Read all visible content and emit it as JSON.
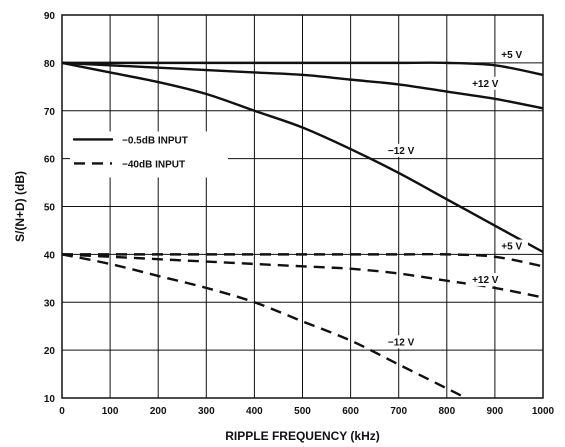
{
  "chart_data": {
    "type": "line",
    "title": "",
    "xlabel": "RIPPLE FREQUENCY (kHz)",
    "ylabel": "S/(N+D) (dB)",
    "xlim": [
      0,
      1000
    ],
    "ylim": [
      10,
      90
    ],
    "x_ticks": [
      "0",
      "100",
      "200",
      "300",
      "400",
      "500",
      "600",
      "700",
      "800",
      "900",
      "1000"
    ],
    "y_ticks": [
      "10",
      "20",
      "30",
      "40",
      "50",
      "60",
      "70",
      "80",
      "90"
    ],
    "grid": true,
    "legend": {
      "position": "left",
      "entries": [
        {
          "label": "−0.5dB INPUT",
          "style": "solid"
        },
        {
          "label": "−40dB INPUT",
          "style": "dashed"
        }
      ]
    },
    "series": [
      {
        "label": "+5 V",
        "style": "solid",
        "x": [
          0,
          100,
          200,
          300,
          400,
          500,
          600,
          700,
          800,
          900,
          1000
        ],
        "y": [
          80,
          80,
          80,
          80,
          80,
          80,
          80,
          80,
          80,
          79.5,
          77.5
        ]
      },
      {
        "label": "+12 V",
        "style": "solid",
        "x": [
          0,
          100,
          200,
          300,
          400,
          500,
          600,
          700,
          800,
          900,
          1000
        ],
        "y": [
          80,
          79.5,
          79,
          78.5,
          78,
          77.5,
          76.5,
          75.5,
          74,
          72.5,
          70.5
        ]
      },
      {
        "label": "−12 V",
        "style": "solid",
        "x": [
          0,
          100,
          200,
          300,
          400,
          500,
          600,
          700,
          800,
          900,
          1000
        ],
        "y": [
          80,
          78,
          76,
          73.5,
          70,
          66.5,
          62,
          57,
          51.5,
          46,
          40.5
        ]
      },
      {
        "label": "+5 V",
        "style": "dashed",
        "x": [
          0,
          100,
          200,
          300,
          400,
          500,
          600,
          700,
          800,
          900,
          1000
        ],
        "y": [
          40,
          40,
          40,
          40,
          40,
          40,
          40,
          40,
          40,
          39.5,
          37.5
        ]
      },
      {
        "label": "+12 V",
        "style": "dashed",
        "x": [
          0,
          100,
          200,
          300,
          400,
          500,
          600,
          700,
          800,
          900,
          1000
        ],
        "y": [
          40,
          39.5,
          39,
          38.5,
          38,
          37.5,
          37,
          36,
          34.5,
          33,
          31
        ]
      },
      {
        "label": "−12 V",
        "style": "dashed",
        "x": [
          0,
          100,
          200,
          300,
          400,
          500,
          600,
          700,
          800,
          850
        ],
        "y": [
          40,
          38,
          35.5,
          33,
          30,
          26,
          22,
          17,
          12,
          9.5
        ]
      }
    ],
    "annotations": [
      {
        "text": "+5 V",
        "x": 935,
        "y": 81
      },
      {
        "text": "+12 V",
        "x": 880,
        "y": 75
      },
      {
        "text": "−12 V",
        "x": 705,
        "y": 61
      },
      {
        "text": "+5 V",
        "x": 935,
        "y": 41
      },
      {
        "text": "+12 V",
        "x": 880,
        "y": 34
      },
      {
        "text": "−12 V",
        "x": 705,
        "y": 21
      }
    ]
  }
}
